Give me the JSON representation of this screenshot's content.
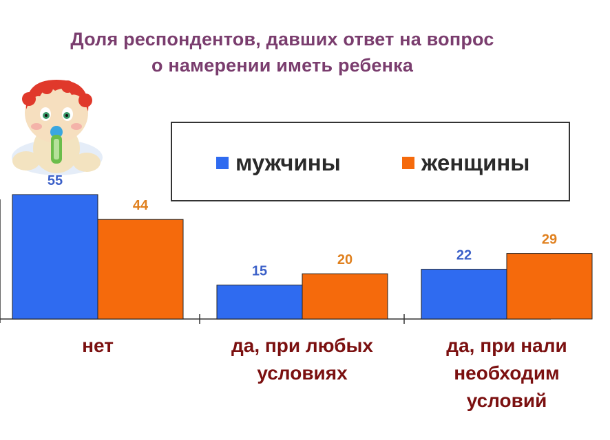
{
  "chart_data": {
    "type": "bar",
    "title_lines": [
      "Доля респондентов, давших ответ на вопрос",
      "о намерении иметь ребенка"
    ],
    "categories": [
      [
        "нет"
      ],
      [
        "да, при любых",
        "условиях"
      ],
      [
        "да, при нали",
        "необходим",
        "условий"
      ]
    ],
    "series": [
      {
        "name": "мужчины",
        "values": [
          55,
          15,
          22
        ],
        "color": "#2f6bf0"
      },
      {
        "name": "женщины",
        "values": [
          44,
          20,
          29
        ],
        "color": "#f56a0c"
      }
    ],
    "value_label_colors": {
      "мужчины": "#3a5fc8",
      "женщины": "#e0801e"
    },
    "xlabel": "",
    "ylabel": "",
    "ylim": [
      0,
      62
    ],
    "legend": "top-right",
    "grid": false
  },
  "colors": {
    "title": "#7a3d6e",
    "category_label": "#7b1010",
    "axis": "#333333"
  },
  "decorations": {
    "image": "baby-illustration"
  }
}
